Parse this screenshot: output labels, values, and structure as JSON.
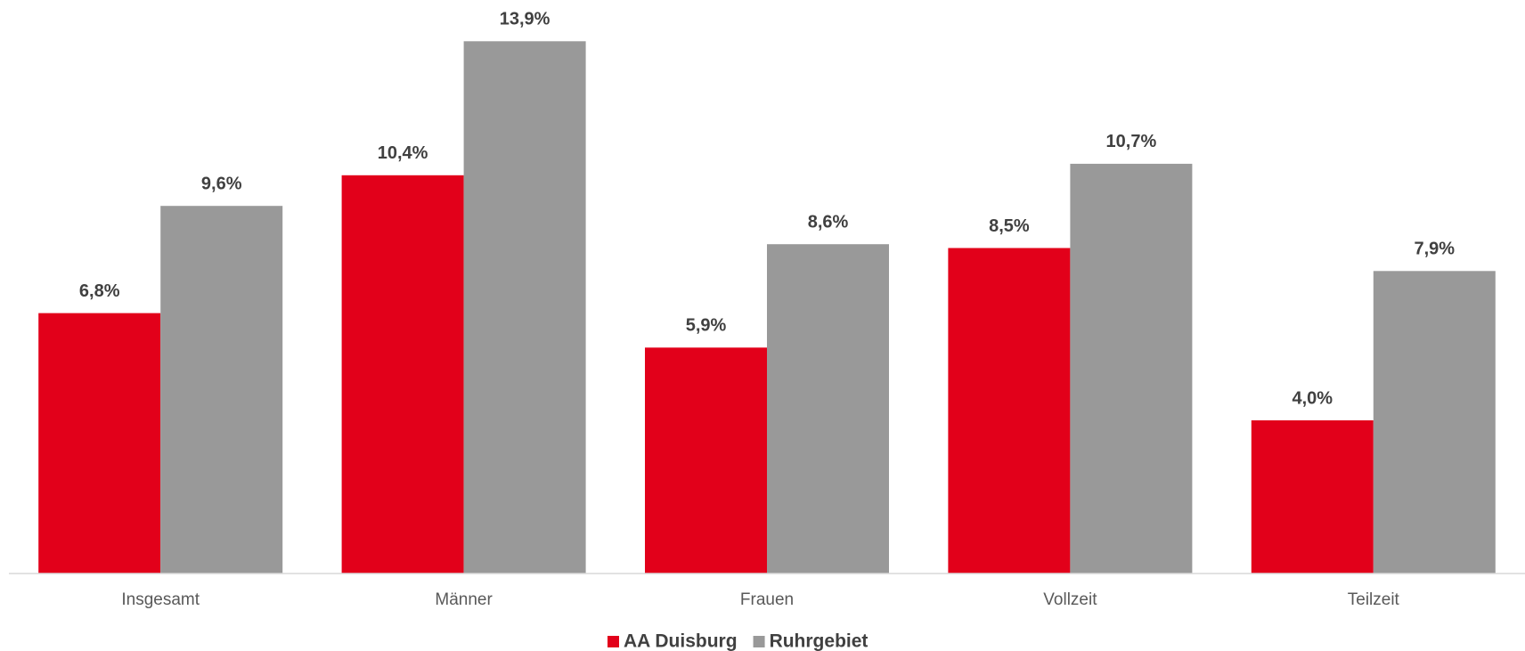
{
  "chart_data": {
    "type": "bar",
    "categories": [
      "Insgesamt",
      "Männer",
      "Frauen",
      "Vollzeit",
      "Teilzeit"
    ],
    "series": [
      {
        "name": "AA Duisburg",
        "color": "#e2001a",
        "values": [
          6.8,
          10.4,
          5.9,
          8.5,
          4.0
        ],
        "value_labels": [
          "6,8%",
          "10,4%",
          "5,9%",
          "8,5%",
          "4,0%"
        ]
      },
      {
        "name": "Ruhrgebiet",
        "color": "#999999",
        "values": [
          9.6,
          13.9,
          8.6,
          10.7,
          7.9
        ],
        "value_labels": [
          "9,6%",
          "13,9%",
          "8,6%",
          "10,7%",
          "7,9%"
        ]
      }
    ],
    "ylim": [
      0,
      14
    ],
    "grid": false,
    "legend": "bottom"
  }
}
